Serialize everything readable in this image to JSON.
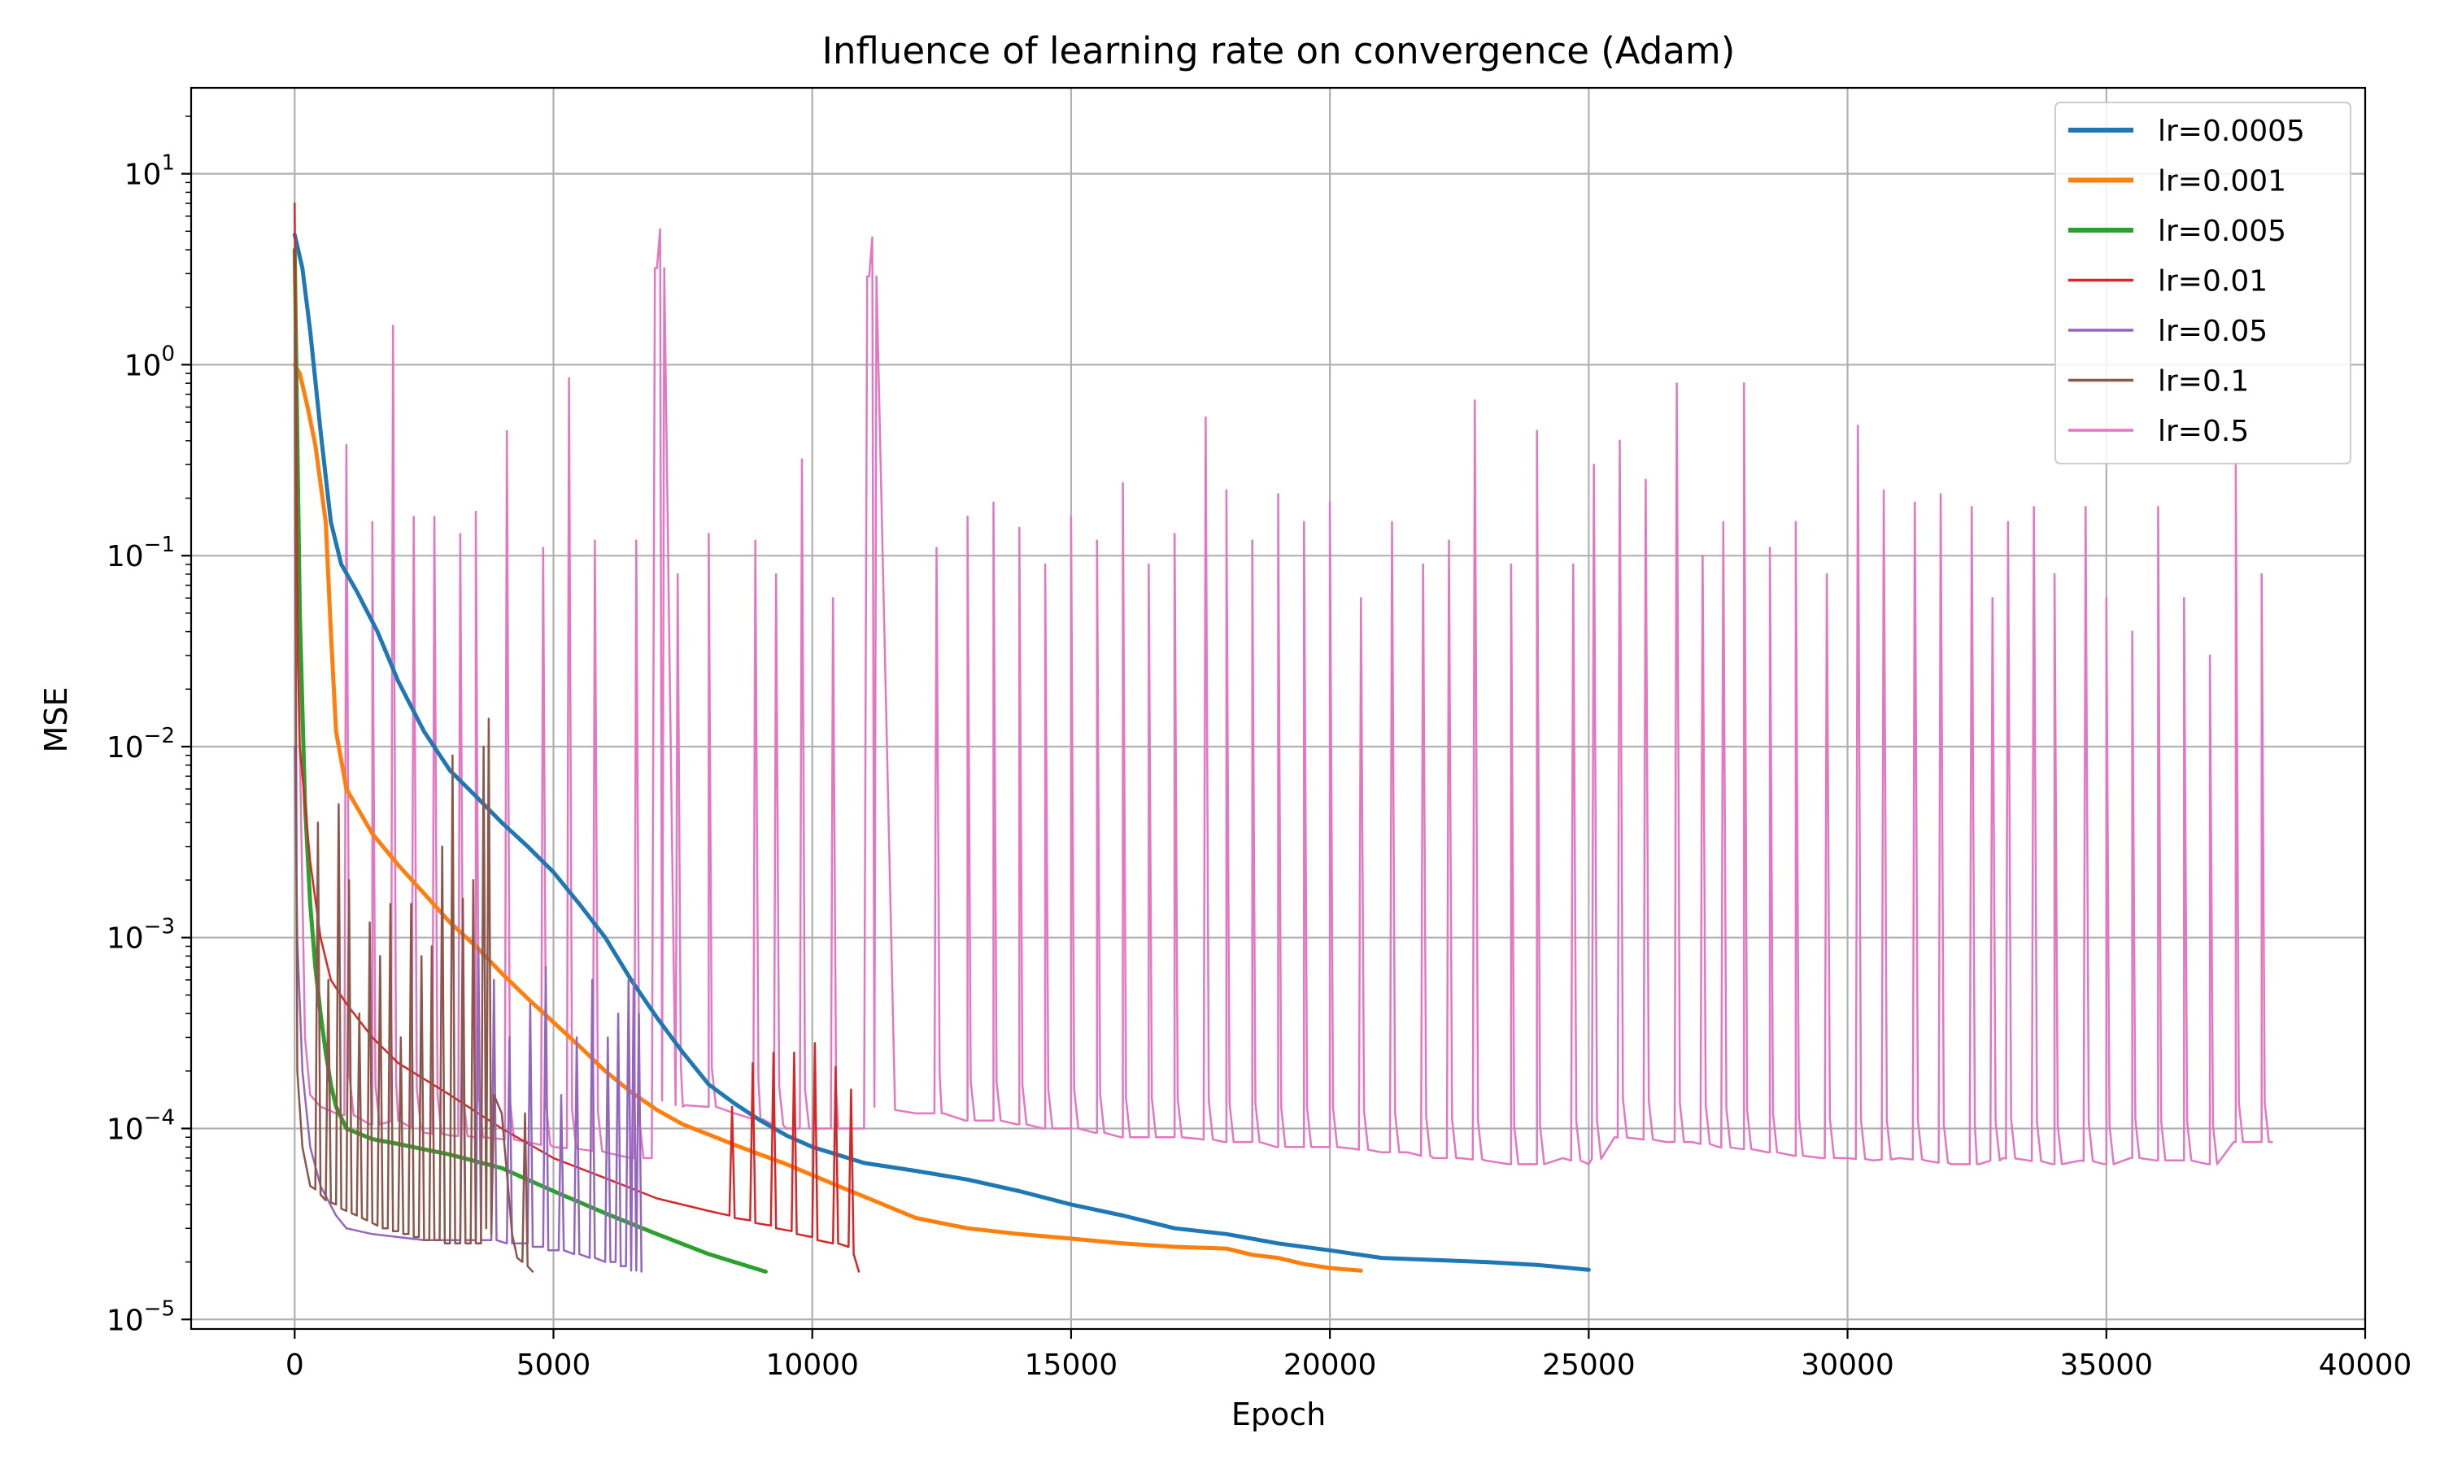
{
  "chart_data": {
    "type": "line",
    "title": "Influence of learning rate on convergence (Adam)",
    "xlabel": "Epoch",
    "ylabel": "MSE",
    "xlim": [
      -2000,
      40000
    ],
    "ylim_log10": [
      -5.05,
      1.45
    ],
    "yscale": "log",
    "grid": true,
    "legend_position": "top-right",
    "x_ticks": [
      0,
      5000,
      10000,
      15000,
      20000,
      25000,
      30000,
      35000,
      40000
    ],
    "y_tick_exponents": [
      -5,
      -4,
      -3,
      -2,
      -1,
      0,
      1
    ],
    "y_tick_base": "10",
    "series": [
      {
        "name": "lr=0.0005",
        "color": "#1f77b4",
        "width": 5,
        "x": [
          0,
          150,
          300,
          500,
          700,
          900,
          1200,
          1600,
          2000,
          2500,
          3000,
          3500,
          4000,
          4500,
          5000,
          5500,
          6000,
          6500,
          7000,
          7500,
          8000,
          8500,
          9000,
          9500,
          10000,
          11000,
          12000,
          13000,
          14000,
          15000,
          16000,
          17000,
          18000,
          19000,
          20000,
          21000,
          22000,
          23000,
          24000,
          25000
        ],
        "y": [
          4.8,
          3.2,
          1.5,
          0.45,
          0.15,
          0.09,
          0.065,
          0.04,
          0.022,
          0.012,
          0.0075,
          0.0055,
          0.004,
          0.003,
          0.0022,
          0.0015,
          0.001,
          0.0006,
          0.00038,
          0.00025,
          0.00017,
          0.000135,
          0.00011,
          9.2e-05,
          8e-05,
          6.6e-05,
          6e-05,
          5.4e-05,
          4.7e-05,
          4e-05,
          3.5e-05,
          3e-05,
          2.8e-05,
          2.5e-05,
          2.3e-05,
          2.1e-05,
          2.05e-05,
          2e-05,
          1.93e-05,
          1.82e-05
        ]
      },
      {
        "name": "lr=0.001",
        "color": "#ff7f0e",
        "width": 5,
        "x": [
          0,
          100,
          250,
          400,
          600,
          700,
          800,
          1000,
          1500,
          2000,
          2500,
          3000,
          3500,
          4000,
          4500,
          5000,
          5500,
          6000,
          6500,
          7000,
          7500,
          8000,
          8500,
          9000,
          9500,
          10000,
          10500,
          11000,
          12000,
          13000,
          14000,
          15000,
          16000,
          17000,
          18000,
          18500,
          19000,
          19500,
          20000,
          20600
        ],
        "y": [
          1.0,
          0.9,
          0.6,
          0.38,
          0.15,
          0.04,
          0.012,
          0.006,
          0.0035,
          0.0024,
          0.0017,
          0.0012,
          0.0009,
          0.00065,
          0.00048,
          0.00036,
          0.00027,
          0.0002,
          0.000155,
          0.000125,
          0.000105,
          9.3e-05,
          8.2e-05,
          7.3e-05,
          6.5e-05,
          5.7e-05,
          5e-05,
          4.4e-05,
          3.4e-05,
          3e-05,
          2.8e-05,
          2.65e-05,
          2.5e-05,
          2.4e-05,
          2.35e-05,
          2.18e-05,
          2.1e-05,
          1.95e-05,
          1.86e-05,
          1.8e-05
        ]
      },
      {
        "name": "lr=0.005",
        "color": "#2ca02c",
        "width": 5,
        "x": [
          0,
          100,
          200,
          300,
          400,
          500,
          600,
          700,
          800,
          1000,
          1500,
          2000,
          3000,
          4000,
          5000,
          6000,
          7000,
          8000,
          9100
        ],
        "y": [
          4.0,
          0.05,
          0.005,
          0.0015,
          0.0007,
          0.0004,
          0.00025,
          0.00017,
          0.00013,
          0.0001,
          8.8e-05,
          8.3e-05,
          7.3e-05,
          6.2e-05,
          4.7e-05,
          3.6e-05,
          2.8e-05,
          2.2e-05,
          1.78e-05
        ]
      },
      {
        "name": "lr=0.01",
        "color": "#d62728",
        "width": 2.5,
        "x": [
          0,
          30,
          60,
          100,
          200,
          300,
          500,
          700,
          1000,
          1500,
          2000,
          3000,
          4000,
          5000,
          6000,
          7000,
          8000,
          8400,
          8450,
          8500,
          8800,
          8850,
          8900,
          9200,
          9250,
          9300,
          9600,
          9650,
          9700,
          10000,
          10050,
          10100,
          10400,
          10450,
          10500,
          10700,
          10750,
          10800,
          10900
        ],
        "y": [
          7.0,
          0.4,
          0.03,
          0.01,
          0.005,
          0.0025,
          0.001,
          0.0006,
          0.00045,
          0.0003,
          0.00022,
          0.00015,
          0.0001,
          7e-05,
          5.5e-05,
          4.3e-05,
          3.7e-05,
          3.5e-05,
          0.00013,
          3.4e-05,
          3.3e-05,
          0.00022,
          3.2e-05,
          3.1e-05,
          0.00025,
          3e-05,
          2.9e-05,
          0.00025,
          2.8e-05,
          2.7e-05,
          0.00028,
          2.6e-05,
          2.5e-05,
          0.00021,
          2.5e-05,
          2.4e-05,
          0.00016,
          2.2e-05,
          1.78e-05
        ]
      },
      {
        "name": "lr=0.05",
        "color": "#9467bd",
        "width": 2.5,
        "x": [
          0,
          50,
          150,
          300,
          500,
          800,
          1000,
          1500,
          2000,
          2500,
          3000,
          3200,
          3250,
          3300,
          3500,
          3550,
          3600,
          3800,
          3850,
          3900,
          4100,
          4150,
          4200,
          4500,
          4550,
          4600,
          4800,
          4850,
          4900,
          5100,
          5150,
          5200,
          5400,
          5450,
          5500,
          5700,
          5750,
          5800,
          6000,
          6050,
          6100,
          6200,
          6250,
          6300,
          6400,
          6450,
          6500,
          6550,
          6600,
          6650,
          6700
        ],
        "y": [
          0.01,
          0.001,
          0.0002,
          8e-05,
          5e-05,
          3.5e-05,
          3e-05,
          2.8e-05,
          2.7e-05,
          2.6e-05,
          2.6e-05,
          2.6e-05,
          0.00045,
          2.6e-05,
          2.6e-05,
          0.0009,
          2.6e-05,
          2.6e-05,
          0.0006,
          2.6e-05,
          2.5e-05,
          0.0003,
          2.5e-05,
          2.5e-05,
          0.00045,
          2.4e-05,
          2.4e-05,
          0.0007,
          2.3e-05,
          2.3e-05,
          0.00015,
          2.3e-05,
          2.2e-05,
          0.0003,
          2.2e-05,
          2.1e-05,
          0.0006,
          2.1e-05,
          2e-05,
          0.0003,
          2e-05,
          2e-05,
          0.0004,
          1.9e-05,
          1.9e-05,
          0.0006,
          1.8e-05,
          0.0006,
          1.8e-05,
          0.0004,
          1.78e-05
        ]
      },
      {
        "name": "lr=0.1",
        "color": "#8c564b",
        "width": 2.5,
        "x": [
          0,
          50,
          150,
          300,
          400,
          450,
          500,
          600,
          650,
          700,
          800,
          850,
          900,
          1000,
          1050,
          1100,
          1200,
          1250,
          1300,
          1400,
          1450,
          1500,
          1600,
          1650,
          1700,
          1800,
          1850,
          1900,
          2000,
          2050,
          2100,
          2200,
          2250,
          2300,
          2400,
          2450,
          2500,
          2600,
          2650,
          2700,
          2800,
          2850,
          2900,
          3000,
          3050,
          3100,
          3200,
          3250,
          3300,
          3400,
          3450,
          3500,
          3600,
          3650,
          3700,
          3750,
          3800,
          3850,
          4000,
          4200,
          4300,
          4400,
          4450,
          4500,
          4600
        ],
        "y": [
          1.5,
          0.0002,
          8e-05,
          5e-05,
          4.8e-05,
          0.004,
          4.5e-05,
          4.2e-05,
          0.0006,
          4.1e-05,
          4e-05,
          0.005,
          3.8e-05,
          3.7e-05,
          0.002,
          3.6e-05,
          3.5e-05,
          0.0004,
          3.4e-05,
          3.3e-05,
          0.0012,
          3.2e-05,
          3.1e-05,
          0.0008,
          3e-05,
          3e-05,
          0.0015,
          2.9e-05,
          2.9e-05,
          0.0003,
          2.8e-05,
          2.8e-05,
          0.0015,
          2.7e-05,
          2.7e-05,
          0.0008,
          2.6e-05,
          2.6e-05,
          0.0009,
          2.6e-05,
          2.6e-05,
          0.003,
          2.5e-05,
          2.5e-05,
          0.009,
          2.5e-05,
          2.5e-05,
          0.0016,
          2.5e-05,
          2.5e-05,
          0.002,
          2.5e-05,
          2.5e-05,
          0.01,
          3e-05,
          0.014,
          2.8e-05,
          0.00015,
          0.00012,
          2.8e-05,
          2.1e-05,
          2e-05,
          0.00012,
          1.9e-05,
          1.78e-05
        ]
      },
      {
        "name": "lr=0.5",
        "color": "#e377c2",
        "width": 2.5,
        "x": [
          0,
          100,
          200,
          300,
          500,
          800,
          1200,
          1500,
          2000,
          2500,
          3000,
          3500,
          4000,
          4500,
          5000,
          5500,
          6000,
          6500,
          6900,
          7000,
          7100,
          7500,
          8000,
          8500,
          9000,
          9500,
          10000,
          10500,
          11000,
          11100,
          11200,
          11600,
          12000,
          12500,
          13000,
          13500,
          14000,
          14500,
          15000,
          15500,
          16000,
          16500,
          17000,
          17500,
          18000,
          18500,
          19000,
          19500,
          20000,
          20500,
          21000,
          21500,
          22000,
          22500,
          23000,
          23500,
          24000,
          24500,
          25000,
          25500,
          26000,
          26500,
          27000,
          27500,
          28000,
          28500,
          29000,
          29500,
          30000,
          30500,
          31000,
          31500,
          32000,
          32500,
          33000,
          33500,
          34000,
          34500,
          35000,
          35500,
          36000,
          36500,
          37000,
          37500,
          38000,
          38200
        ],
        "y": [
          3.0,
          0.01,
          0.0003,
          0.00015,
          0.00013,
          0.00012,
          0.000115,
          0.000105,
          0.00011,
          9.5e-05,
          9.2e-05,
          9e-05,
          8.8e-05,
          8.5e-05,
          8e-05,
          7.8e-05,
          7.5e-05,
          7e-05,
          7e-05,
          3.2,
          0.00014,
          0.00013,
          0.00013,
          0.00012,
          0.00011,
          0.0001,
          0.0001,
          0.0001,
          0.0001,
          2.9,
          0.00013,
          0.000125,
          0.00012,
          0.00012,
          0.00011,
          0.00011,
          0.000105,
          0.0001,
          0.0001,
          9.5e-05,
          9e-05,
          9e-05,
          9e-05,
          8.8e-05,
          8.5e-05,
          8.5e-05,
          8e-05,
          8e-05,
          8e-05,
          7.8e-05,
          7.5e-05,
          7.5e-05,
          7e-05,
          7e-05,
          6.8e-05,
          6.5e-05,
          6.5e-05,
          7e-05,
          6.5e-05,
          9e-05,
          8.8e-05,
          8.5e-05,
          8.5e-05,
          8e-05,
          7.8e-05,
          7.5e-05,
          7.2e-05,
          7e-05,
          7e-05,
          6.8e-05,
          7e-05,
          6.8e-05,
          6.5e-05,
          6.5e-05,
          7e-05,
          6.8e-05,
          6.5e-05,
          6.8e-05,
          6.5e-05,
          7e-05,
          6.8e-05,
          6.8e-05,
          6.5e-05,
          8.5e-05,
          8.5e-05,
          8.5e-05
        ]
      }
    ],
    "lr05_spikes": [
      [
        1000,
        0.38
      ],
      [
        1500,
        0.15
      ],
      [
        1900,
        1.6
      ],
      [
        2300,
        0.16
      ],
      [
        2700,
        0.16
      ],
      [
        3200,
        0.13
      ],
      [
        3500,
        0.17
      ],
      [
        4100,
        0.45
      ],
      [
        4800,
        0.11
      ],
      [
        5300,
        0.85
      ],
      [
        5800,
        0.12
      ],
      [
        6600,
        0.12
      ],
      [
        7000,
        3.2
      ],
      [
        7400,
        0.08
      ],
      [
        8000,
        0.13
      ],
      [
        8900,
        0.12
      ],
      [
        9300,
        0.08
      ],
      [
        9800,
        0.32
      ],
      [
        10400,
        0.06
      ],
      [
        11100,
        2.9
      ],
      [
        12400,
        0.11
      ],
      [
        13000,
        0.16
      ],
      [
        13500,
        0.19
      ],
      [
        14000,
        0.14
      ],
      [
        14500,
        0.09
      ],
      [
        15000,
        0.16
      ],
      [
        15500,
        0.12
      ],
      [
        16000,
        0.24
      ],
      [
        16500,
        0.09
      ],
      [
        17000,
        0.13
      ],
      [
        17600,
        0.53
      ],
      [
        18000,
        0.22
      ],
      [
        18500,
        0.12
      ],
      [
        19000,
        0.21
      ],
      [
        19500,
        0.15
      ],
      [
        20000,
        0.19
      ],
      [
        20600,
        0.06
      ],
      [
        21200,
        0.15
      ],
      [
        21800,
        0.09
      ],
      [
        22300,
        0.12
      ],
      [
        22800,
        0.65
      ],
      [
        23500,
        0.09
      ],
      [
        24000,
        0.45
      ],
      [
        24700,
        0.09
      ],
      [
        25100,
        0.3
      ],
      [
        25600,
        0.4
      ],
      [
        26100,
        0.25
      ],
      [
        26700,
        0.8
      ],
      [
        27200,
        0.1
      ],
      [
        27600,
        0.15
      ],
      [
        28000,
        0.8
      ],
      [
        28500,
        0.11
      ],
      [
        29000,
        0.15
      ],
      [
        29600,
        0.08
      ],
      [
        30200,
        0.48
      ],
      [
        30700,
        0.22
      ],
      [
        31300,
        0.19
      ],
      [
        31800,
        0.21
      ],
      [
        32400,
        0.18
      ],
      [
        32800,
        0.06
      ],
      [
        33100,
        0.15
      ],
      [
        33600,
        0.18
      ],
      [
        34000,
        0.08
      ],
      [
        34600,
        0.18
      ],
      [
        35000,
        0.06
      ],
      [
        35500,
        0.04
      ],
      [
        36000,
        0.18
      ],
      [
        36500,
        0.06
      ],
      [
        37000,
        0.03
      ],
      [
        37500,
        0.31
      ],
      [
        38000,
        0.08
      ]
    ]
  }
}
